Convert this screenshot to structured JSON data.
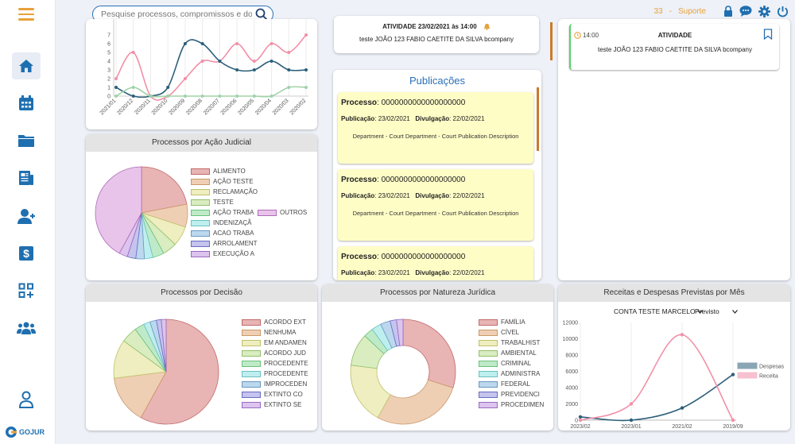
{
  "search": {
    "placeholder": "Pesquise processos, compromissos e docu"
  },
  "topbar": {
    "count": "33",
    "separator": "-",
    "support": "Suporte"
  },
  "sidebar": {
    "items": [
      "home-icon",
      "calendar-icon",
      "folder-icon",
      "newspaper-icon",
      "add-user-icon",
      "money-icon",
      "apps-add-icon",
      "team-icon"
    ],
    "profile": "user-profile-icon",
    "logo_text": "GOJUR"
  },
  "colors": {
    "accent": "#2a6fb5",
    "orange": "#e8a13a"
  },
  "activity_card_mid": {
    "title": "ATIVIDADE 23/02/2021 às 14:00",
    "text": "teste JOÃO 123 FABIO CAETITE DA SILVA bcompany"
  },
  "activity_card_right": {
    "time": "14:00",
    "title": "ATIVIDADE",
    "text": "teste JOÃO 123 FABIO CAETITE DA SILVA bcompany"
  },
  "publications": {
    "title": "Publicações",
    "items": [
      {
        "proc_label": "Processo",
        "proc_value": ": 0000000000000000000",
        "pub_label": "Publicação",
        "pub_value": ": 23/02/2021",
        "div_label": "Divulgação",
        "div_value": ": 22/02/2021",
        "desc": "Department - Court Department - Court Publication Description"
      },
      {
        "proc_label": "Processo",
        "proc_value": ": 0000000000000000000",
        "pub_label": "Publicação",
        "pub_value": ": 23/02/2021",
        "div_label": "Divulgação",
        "div_value": ": 22/02/2021",
        "desc": "Department - Court Department - Court Publication Description"
      },
      {
        "proc_label": "Processo",
        "proc_value": ": 0000000000000000000",
        "pub_label": "Publicação",
        "pub_value": ": 23/02/2021",
        "div_label": "Divulgação",
        "div_value": ": 22/02/2021",
        "desc": ""
      }
    ]
  },
  "line_top": {
    "y_ticks": [
      "0",
      "1",
      "2",
      "3",
      "4",
      "5",
      "6",
      "7"
    ],
    "x_labels": [
      "2021/01",
      "2020/12",
      "2020/11",
      "2020/10",
      "2020/09",
      "2020/08",
      "2020/07",
      "2020/06",
      "2020/05",
      "2020/04",
      "2020/03",
      "2020/02"
    ],
    "series": [
      {
        "color": "#f28fa8",
        "values": [
          2,
          5,
          0,
          0,
          2,
          4,
          4,
          6,
          4,
          6,
          5,
          7
        ]
      },
      {
        "color": "#2c5f7a",
        "values": [
          1,
          0,
          0,
          1,
          6,
          6,
          4,
          3,
          3,
          4,
          3,
          3
        ]
      },
      {
        "color": "#9fd3a8",
        "values": [
          0,
          1,
          0,
          0,
          0,
          0,
          0,
          0,
          0,
          0,
          1,
          1
        ]
      }
    ]
  },
  "pie_acao": {
    "title": "Processos por Ação Judicial",
    "slices": [
      {
        "label": "ALIMENTO",
        "value": 22,
        "fill": "#e8b4b4",
        "stroke": "#c26a6a"
      },
      {
        "label": "AÇÃO TESTE",
        "value": 8,
        "fill": "#efcfb4",
        "stroke": "#c9996a"
      },
      {
        "label": "RECLAMAÇÃO",
        "value": 7,
        "fill": "#eeeec0",
        "stroke": "#c1c16a"
      },
      {
        "label": "TESTE",
        "value": 5,
        "fill": "#d9edc1",
        "stroke": "#93bf6a"
      },
      {
        "label": "AÇÃO TRABA",
        "value": 4,
        "fill": "#bfeac8",
        "stroke": "#6ac27c"
      },
      {
        "label": "INDENIZAÇÃ",
        "value": 3,
        "fill": "#bfeeee",
        "stroke": "#6ac2c2"
      },
      {
        "label": "ACAO TRABA",
        "value": 3,
        "fill": "#bcd8ee",
        "stroke": "#6a98c2"
      },
      {
        "label": "ARROLAMENT",
        "value": 3,
        "fill": "#c4c4ee",
        "stroke": "#6a6ac2"
      },
      {
        "label": "EXECUÇÃO A",
        "value": 3,
        "fill": "#dcc4ee",
        "stroke": "#9a6ac2"
      },
      {
        "label": "OUTROS",
        "value": 42,
        "fill": "#e8c4ea",
        "stroke": "#b06ab8"
      }
    ]
  },
  "pie_decisao": {
    "title": "Processos por Decisão",
    "slices": [
      {
        "label": "ACORDO EXT",
        "value": 58,
        "fill": "#e8b4b4",
        "stroke": "#c26a6a"
      },
      {
        "label": "NENHUMA",
        "value": 15,
        "fill": "#efcfb4",
        "stroke": "#c9996a"
      },
      {
        "label": "EM ANDAMEN",
        "value": 12,
        "fill": "#eeeec0",
        "stroke": "#c1c16a"
      },
      {
        "label": "ACORDO JUD",
        "value": 5,
        "fill": "#d9edc1",
        "stroke": "#93bf6a"
      },
      {
        "label": "PROCEDENTE",
        "value": 3,
        "fill": "#bfeac8",
        "stroke": "#6ac27c"
      },
      {
        "label": "PROCEDENTE",
        "value": 2,
        "fill": "#bfeeee",
        "stroke": "#6ac2c2"
      },
      {
        "label": "IMPROCEDEN",
        "value": 2,
        "fill": "#bcd8ee",
        "stroke": "#6a98c2"
      },
      {
        "label": "EXTINTO CO",
        "value": 1.5,
        "fill": "#c4c4ee",
        "stroke": "#6a6ac2"
      },
      {
        "label": "EXTINTO SE",
        "value": 1.5,
        "fill": "#dcc4ee",
        "stroke": "#9a6ac2"
      }
    ]
  },
  "pie_natureza": {
    "title": "Processos por Natureza Jurídica",
    "slices": [
      {
        "label": "FAMÍLIA",
        "value": 30,
        "fill": "#e8b4b4",
        "stroke": "#c26a6a"
      },
      {
        "label": "CÍVEL",
        "value": 28,
        "fill": "#efcfb4",
        "stroke": "#c9996a"
      },
      {
        "label": "TRABALHIST",
        "value": 19,
        "fill": "#eeeec0",
        "stroke": "#c1c16a"
      },
      {
        "label": "AMBIENTAL",
        "value": 10,
        "fill": "#d9edc1",
        "stroke": "#93bf6a"
      },
      {
        "label": "CRIMINAL",
        "value": 3,
        "fill": "#bfeac8",
        "stroke": "#6ac27c"
      },
      {
        "label": "ADMINISTRA",
        "value": 3,
        "fill": "#bfeeee",
        "stroke": "#6ac2c2"
      },
      {
        "label": "FEDERAL",
        "value": 3,
        "fill": "#bcd8ee",
        "stroke": "#6a98c2"
      },
      {
        "label": "PREVIDENCI",
        "value": 2,
        "fill": "#c4c4ee",
        "stroke": "#6a6ac2"
      },
      {
        "label": "PROCEDIMEN",
        "value": 2,
        "fill": "#dcc4ee",
        "stroke": "#9a6ac2"
      }
    ]
  },
  "chart_data": {
    "type": "line",
    "title": "Receitas e Despesas Previstas por Mês",
    "categories": [
      "2023/02",
      "2023/01",
      "2021/02",
      "2019/09"
    ],
    "ylim": [
      0,
      12000
    ],
    "y_ticks": [
      "0",
      "2000",
      "4000",
      "6000",
      "8000",
      "10000",
      "12000"
    ],
    "series": [
      {
        "name": "Despesas",
        "color": "#2c5f7a",
        "values": [
          400,
          0,
          1500,
          5600
        ]
      },
      {
        "name": "Receita",
        "color": "#f28fa8",
        "values": [
          0,
          2000,
          10500,
          0
        ]
      }
    ],
    "legend": "right",
    "selects": {
      "account": "CONTA TESTE MARCELO",
      "mode": "Previsto"
    }
  }
}
